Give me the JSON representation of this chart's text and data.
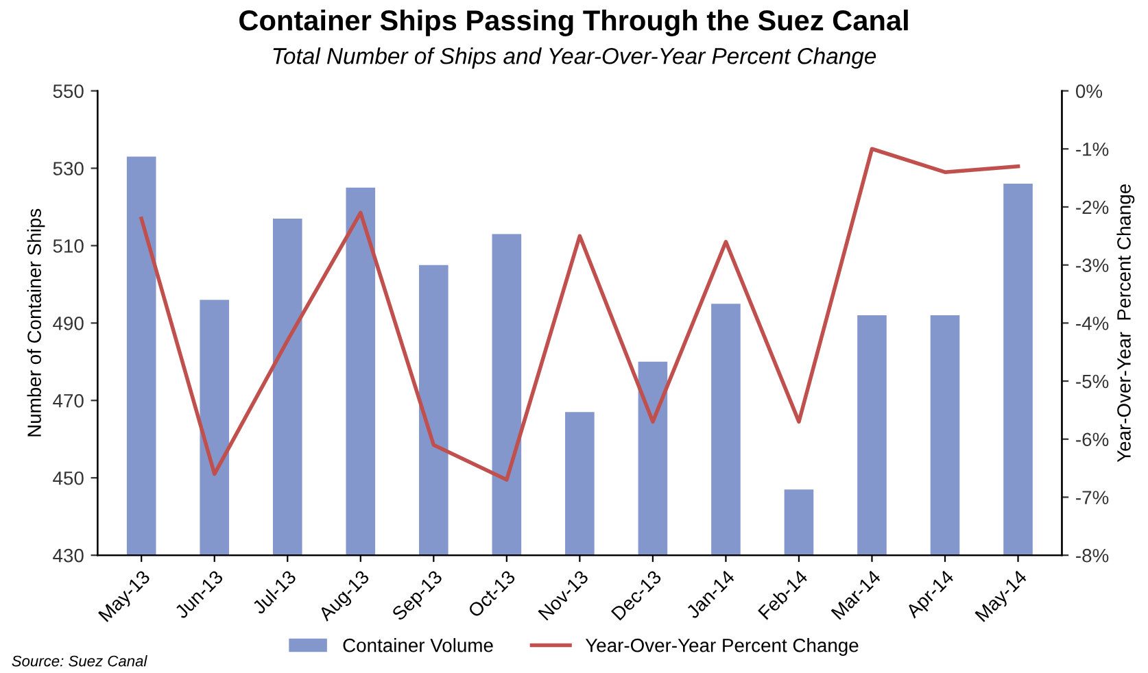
{
  "chart_data": {
    "type": "bar",
    "title": "Container Ships Passing Through the Suez Canal",
    "subtitle": "Total Number of Ships and Year-Over-Year Percent Change",
    "ylabel": "Number of Container Ships",
    "y2label": "Year-Over-Year  Percent Change",
    "categories": [
      "May-13",
      "Jun-13",
      "Jul-13",
      "Aug-13",
      "Sep-13",
      "Oct-13",
      "Nov-13",
      "Dec-13",
      "Jan-14",
      "Feb-14",
      "Mar-14",
      "Apr-14",
      "May-14"
    ],
    "series": [
      {
        "name": "Container Volume",
        "color": "#8497cc",
        "values": [
          533,
          496,
          517,
          525,
          505,
          513,
          467,
          480,
          495,
          447,
          492,
          492,
          526
        ]
      },
      {
        "name": "Year-Over-Year Percent Change",
        "type": "line",
        "axis": "y2",
        "color": "#c0504d",
        "values": [
          -2.2,
          -6.6,
          -4.3,
          -2.1,
          -6.1,
          -6.7,
          -2.5,
          -5.7,
          -2.6,
          -5.7,
          -1.0,
          -1.4,
          -1.3
        ]
      }
    ],
    "ylim": [
      430,
      550
    ],
    "yticks": [
      430,
      450,
      470,
      490,
      510,
      530,
      550
    ],
    "y2lim": [
      -8,
      0
    ],
    "y2ticks": [
      {
        "value": -8,
        "label": "-8%"
      },
      {
        "value": -7,
        "label": "-7%"
      },
      {
        "value": -6,
        "label": "-6%"
      },
      {
        "value": -5,
        "label": "-5%"
      },
      {
        "value": -4,
        "label": "-4%"
      },
      {
        "value": -3,
        "label": "-3%"
      },
      {
        "value": -2,
        "label": "-2%"
      },
      {
        "value": -1,
        "label": "-1%"
      },
      {
        "value": 0,
        "label": "0%"
      }
    ],
    "legend": "bottom",
    "grid": false,
    "annotations": [
      "Source: Suez Canal"
    ]
  }
}
